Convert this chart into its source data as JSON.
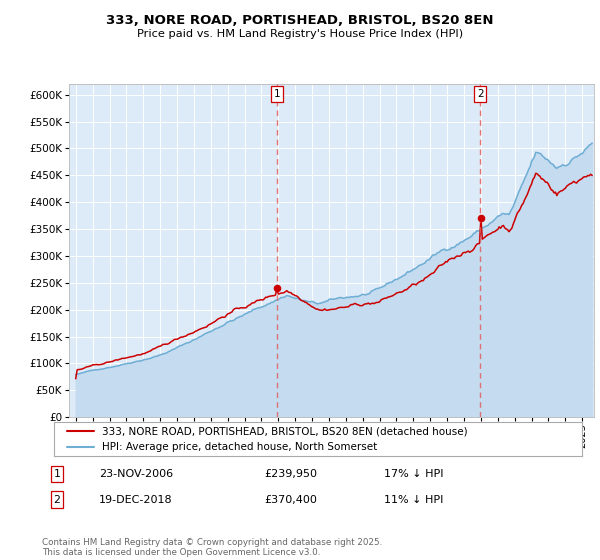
{
  "title": "333, NORE ROAD, PORTISHEAD, BRISTOL, BS20 8EN",
  "subtitle": "Price paid vs. HM Land Registry's House Price Index (HPI)",
  "background_color": "#ffffff",
  "plot_bg_color": "#ddeaf7",
  "grid_color": "#ffffff",
  "hpi_color": "#6eadd4",
  "hpi_fill_color": "#c5dcf0",
  "price_color": "#cc0000",
  "marker_color": "#cc0000",
  "vline_color": "#e06060",
  "ylim": [
    0,
    620000
  ],
  "yticks": [
    0,
    50000,
    100000,
    150000,
    200000,
    250000,
    300000,
    350000,
    400000,
    450000,
    500000,
    550000,
    600000
  ],
  "sale1_date": "23-NOV-2006",
  "sale1_price": 239950,
  "sale1_label": "1",
  "sale1_hpi_pct": "17% ↓ HPI",
  "sale2_date": "19-DEC-2018",
  "sale2_price": 370400,
  "sale2_label": "2",
  "sale2_hpi_pct": "11% ↓ HPI",
  "legend_red": "333, NORE ROAD, PORTISHEAD, BRISTOL, BS20 8EN (detached house)",
  "legend_blue": "HPI: Average price, detached house, North Somerset",
  "footer": "Contains HM Land Registry data © Crown copyright and database right 2025.\nThis data is licensed under the Open Government Licence v3.0.",
  "sale1_x": 2006.9,
  "sale2_x": 2018.96
}
